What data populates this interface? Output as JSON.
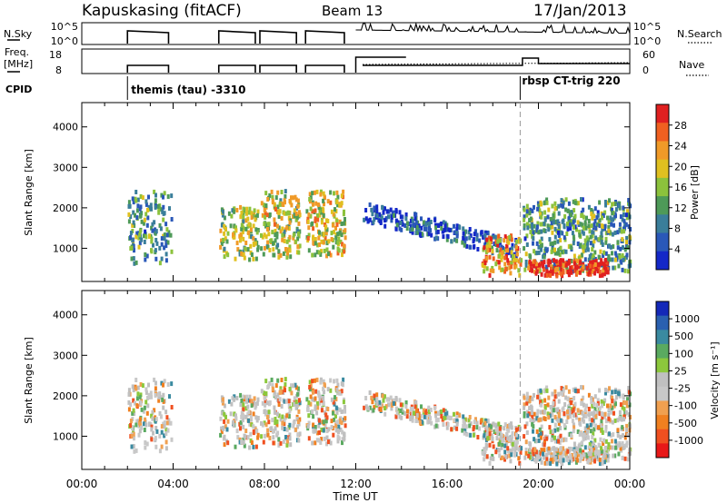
{
  "header": {
    "radar": "Kapuskasing (fitACF)",
    "beam": "Beam 13",
    "date": "17/Jan/2013"
  },
  "noise_panel": {
    "left_label": "N.Sky",
    "left_ticks": [
      "10^5",
      "10^0"
    ],
    "right_ticks": [
      "10^5",
      "10^0"
    ],
    "right_label": "N.Search"
  },
  "freq_panel": {
    "left_label_1": "Freq.",
    "left_label_2": "[MHz]",
    "left_ticks": [
      "18",
      "8"
    ],
    "right_ticks": [
      "60",
      "0"
    ],
    "right_label": "Nave"
  },
  "cpid_panel": {
    "label": "CPID",
    "modes": [
      {
        "start_hour": 2.0,
        "text": "themis (tau) -3310"
      },
      {
        "start_hour": 19.2,
        "text": "rbsp CT-trig 220"
      }
    ]
  },
  "chart_data": [
    {
      "type": "heatmap",
      "panel": "power",
      "ylabel": "Slant Range [km]",
      "y_ticks": [
        1000,
        2000,
        3000,
        4000
      ],
      "ylim": [
        180,
        4600
      ],
      "x_ticks": [
        "00:00",
        "04:00",
        "08:00",
        "12:00",
        "16:00",
        "20:00",
        "00:00"
      ],
      "xlim_hours": [
        0,
        24
      ],
      "colorbar": {
        "label": "Power [dB]",
        "ticks": [
          "4",
          "8",
          "12",
          "16",
          "20",
          "24",
          "28"
        ],
        "range": [
          0,
          30
        ],
        "colors": [
          "#1428c8",
          "#2a58b8",
          "#3a7e9a",
          "#4e9a58",
          "#8cc23c",
          "#e0c020",
          "#f09a28",
          "#f06020",
          "#e02020"
        ]
      },
      "mode_change_hour": 19.2
    },
    {
      "type": "heatmap",
      "panel": "velocity",
      "ylabel": "Slant Range [km]",
      "y_ticks": [
        1000,
        2000,
        3000,
        4000
      ],
      "ylim": [
        180,
        4600
      ],
      "x_ticks": [
        "00:00",
        "04:00",
        "08:00",
        "12:00",
        "16:00",
        "20:00",
        "00:00"
      ],
      "xlim_hours": [
        0,
        24
      ],
      "xlabel": "Time UT",
      "colorbar": {
        "label": "Velocity [m s⁻¹]",
        "ticks": [
          "1000",
          "500",
          "100",
          "25",
          "-25",
          "-100",
          "-500",
          "-1000"
        ],
        "range": [
          -1200,
          1200
        ],
        "colors": [
          "#1428b8",
          "#2a60b0",
          "#3a8aa0",
          "#5aaa60",
          "#8cc83c",
          "#c0c0c0",
          "#c8c8c8",
          "#f0a050",
          "#f08020",
          "#f05020",
          "#e81818"
        ]
      },
      "mode_change_hour": 19.2
    }
  ]
}
